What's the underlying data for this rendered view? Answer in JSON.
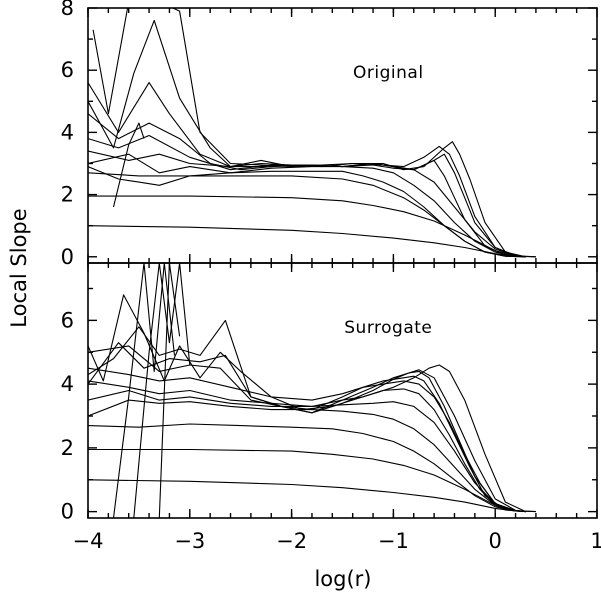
{
  "chart_data": [
    {
      "type": "line",
      "panel": "top",
      "annotation": "Original",
      "xlabel": "log(r)",
      "ylabel": "Local Slope",
      "xlim": [
        -4,
        1
      ],
      "ylim": [
        -0.2,
        8
      ],
      "x_ticks": [
        "-4",
        "-3",
        "-2",
        "-1",
        "0",
        "1"
      ],
      "y_ticks": [
        "0",
        "2",
        "4",
        "6",
        "8"
      ],
      "y_tick_values": [
        0,
        2,
        4,
        6,
        8
      ],
      "series": [
        {
          "x": [
            -4,
            -3.0,
            -2.0,
            -1.5,
            -1.0,
            -0.6,
            -0.3,
            0.0,
            0.2,
            0.4
          ],
          "y": [
            1.0,
            0.95,
            0.85,
            0.75,
            0.6,
            0.45,
            0.3,
            0.1,
            0.02,
            0.0
          ]
        },
        {
          "x": [
            -4,
            -3.0,
            -2.0,
            -1.5,
            -1.2,
            -0.9,
            -0.6,
            -0.3,
            0.0,
            0.2,
            0.4
          ],
          "y": [
            1.95,
            1.95,
            1.9,
            1.8,
            1.65,
            1.45,
            1.15,
            0.7,
            0.2,
            0.03,
            0.0
          ]
        },
        {
          "x": [
            -4,
            -3.5,
            -3.0,
            -2.5,
            -2.0,
            -1.5,
            -1.2,
            -0.9,
            -0.7,
            -0.5,
            -0.3,
            -0.1,
            0.1,
            0.3
          ],
          "y": [
            2.7,
            2.6,
            2.6,
            2.6,
            2.6,
            2.5,
            2.3,
            1.9,
            1.5,
            1.0,
            0.5,
            0.15,
            0.02,
            0.0
          ]
        },
        {
          "x": [
            -4,
            -3.7,
            -3.5,
            -3.3,
            -3.0,
            -2.6,
            -2.2,
            -1.8,
            -1.5,
            -1.3,
            -1.1,
            -0.9,
            -0.7,
            -0.5,
            -0.3,
            -0.1,
            0.1,
            0.3
          ],
          "y": [
            2.9,
            2.5,
            2.4,
            2.3,
            2.6,
            2.7,
            2.75,
            2.75,
            2.75,
            2.6,
            2.4,
            2.1,
            1.6,
            1.0,
            0.5,
            0.15,
            0.02,
            0.0
          ]
        },
        {
          "x": [
            -4,
            -3.6,
            -3.3,
            -3.0,
            -2.6,
            -2.2,
            -1.8,
            -1.5,
            -1.2,
            -1.0,
            -0.8,
            -0.6,
            -0.4,
            -0.2,
            0.0,
            0.2,
            0.3
          ],
          "y": [
            3.0,
            3.3,
            2.7,
            2.9,
            2.7,
            2.85,
            2.9,
            2.9,
            2.85,
            2.7,
            2.3,
            1.8,
            1.1,
            0.5,
            0.15,
            0.02,
            0.0
          ]
        },
        {
          "x": [
            -4,
            -3.6,
            -3.3,
            -3.0,
            -2.6,
            -2.2,
            -1.8,
            -1.5,
            -1.2,
            -1.0,
            -0.8,
            -0.6,
            -0.4,
            -0.2,
            0.0,
            0.2,
            0.3
          ],
          "y": [
            3.4,
            3.1,
            3.3,
            3.0,
            2.9,
            2.9,
            2.95,
            2.9,
            2.95,
            2.85,
            2.8,
            2.4,
            1.6,
            0.8,
            0.25,
            0.03,
            0.0
          ]
        },
        {
          "x": [
            -4,
            -3.7,
            -3.4,
            -3.0,
            -2.6,
            -2.2,
            -1.8,
            -1.5,
            -1.2,
            -1.0,
            -0.8,
            -0.6,
            -0.5,
            -0.4,
            -0.3,
            -0.1,
            0.1,
            0.3
          ],
          "y": [
            3.8,
            3.5,
            3.9,
            3.2,
            2.8,
            2.95,
            2.95,
            2.9,
            3.0,
            2.9,
            2.8,
            3.1,
            2.6,
            1.9,
            1.2,
            0.35,
            0.05,
            0.0
          ]
        },
        {
          "x": [
            -4,
            -3.7,
            -3.4,
            -3.1,
            -2.8,
            -2.5,
            -2.2,
            -1.9,
            -1.5,
            -1.2,
            -1.0,
            -0.8,
            -0.6,
            -0.5,
            -0.4,
            -0.3,
            -0.2,
            0.0,
            0.2,
            0.3
          ],
          "y": [
            4.6,
            3.8,
            4.3,
            3.8,
            3.0,
            2.8,
            2.9,
            2.95,
            2.9,
            3.0,
            2.9,
            2.8,
            3.1,
            3.3,
            2.7,
            1.9,
            1.1,
            0.3,
            0.04,
            0.0
          ]
        },
        {
          "x": [
            -4,
            -3.7,
            -3.4,
            -3.2,
            -2.9,
            -2.6,
            -2.3,
            -2.0,
            -1.7,
            -1.4,
            -1.1,
            -0.9,
            -0.7,
            -0.55,
            -0.45,
            -0.35,
            -0.2,
            0.0,
            0.2,
            0.3
          ],
          "y": [
            5.6,
            4.0,
            5.6,
            4.6,
            3.3,
            2.9,
            3.1,
            2.9,
            2.95,
            3.0,
            2.95,
            2.9,
            3.2,
            3.55,
            3.3,
            2.6,
            1.3,
            0.3,
            0.03,
            0.0
          ]
        },
        {
          "x": [
            -4,
            -3.75,
            -3.55,
            -3.35,
            -3.1,
            -2.8,
            -2.6,
            -2.3,
            -2.0,
            -1.7,
            -1.4,
            -1.1,
            -0.9,
            -0.7,
            -0.5,
            -0.42,
            -0.35,
            -0.25,
            -0.1,
            0.1,
            0.3
          ],
          "y": [
            5.0,
            3.5,
            5.9,
            7.6,
            5.1,
            3.5,
            2.9,
            3.0,
            2.95,
            2.9,
            3.0,
            3.0,
            2.8,
            2.9,
            3.5,
            3.7,
            3.3,
            2.5,
            1.1,
            0.15,
            0.0
          ]
        },
        {
          "x": [
            -3.95,
            -3.8,
            -3.6,
            -3.45,
            -3.3,
            -3.1,
            -2.9,
            -2.6,
            -2.3,
            -2.0
          ],
          "y": [
            7.3,
            4.6,
            8.2,
            8.2,
            8.2,
            7.9,
            4.0,
            3.0,
            2.95,
            2.9
          ]
        },
        {
          "x": [
            -3.75,
            -3.6,
            -3.5,
            -3.45
          ],
          "y": [
            1.6,
            3.6,
            4.3,
            3.8
          ]
        }
      ]
    },
    {
      "type": "line",
      "panel": "bottom",
      "annotation": "Surrogate",
      "xlabel": "log(r)",
      "ylabel": "Local Slope",
      "xlim": [
        -4,
        1
      ],
      "ylim": [
        -0.2,
        7.8
      ],
      "x_ticks": [
        "-4",
        "-3",
        "-2",
        "-1",
        "0",
        "1"
      ],
      "y_ticks": [
        "0",
        "2",
        "4",
        "6"
      ],
      "y_tick_values": [
        0,
        2,
        4,
        6
      ],
      "series": [
        {
          "x": [
            -4,
            -3.0,
            -2.0,
            -1.5,
            -1.0,
            -0.6,
            -0.3,
            0.0,
            0.2,
            0.4
          ],
          "y": [
            1.0,
            0.95,
            0.85,
            0.75,
            0.6,
            0.45,
            0.3,
            0.1,
            0.02,
            0.0
          ]
        },
        {
          "x": [
            -4,
            -3.0,
            -2.0,
            -1.6,
            -1.2,
            -0.9,
            -0.6,
            -0.3,
            0.0,
            0.2,
            0.4
          ],
          "y": [
            1.95,
            1.95,
            1.9,
            1.8,
            1.65,
            1.45,
            1.15,
            0.7,
            0.2,
            0.03,
            0.0
          ]
        },
        {
          "x": [
            -4,
            -3.5,
            -3.0,
            -2.5,
            -2.0,
            -1.6,
            -1.3,
            -1.0,
            -0.8,
            -0.6,
            -0.4,
            -0.2,
            0.0,
            0.2,
            0.3
          ],
          "y": [
            2.7,
            2.65,
            2.75,
            2.7,
            2.65,
            2.6,
            2.45,
            2.2,
            1.9,
            1.5,
            1.0,
            0.5,
            0.15,
            0.02,
            0.0
          ]
        },
        {
          "x": [
            -4,
            -3.6,
            -3.3,
            -3.0,
            -2.6,
            -2.2,
            -1.8,
            -1.5,
            -1.2,
            -1.0,
            -0.8,
            -0.6,
            -0.4,
            -0.2,
            0.0,
            0.2,
            0.3
          ],
          "y": [
            3.0,
            3.5,
            3.4,
            3.45,
            3.3,
            3.2,
            3.2,
            3.15,
            3.05,
            2.9,
            2.6,
            2.1,
            1.4,
            0.7,
            0.2,
            0.03,
            0.0
          ]
        },
        {
          "x": [
            -4,
            -3.6,
            -3.3,
            -3.0,
            -2.6,
            -2.2,
            -1.8,
            -1.5,
            -1.2,
            -1.0,
            -0.8,
            -0.6,
            -0.4,
            -0.2,
            0.0,
            0.2,
            0.3
          ],
          "y": [
            3.5,
            3.8,
            3.5,
            3.6,
            3.4,
            3.3,
            3.3,
            3.35,
            3.4,
            3.45,
            3.3,
            2.8,
            1.9,
            0.9,
            0.25,
            0.03,
            0.0
          ]
        },
        {
          "x": [
            -4,
            -3.6,
            -3.3,
            -3.0,
            -2.6,
            -2.2,
            -1.8,
            -1.5,
            -1.3,
            -1.1,
            -0.9,
            -0.75,
            -0.6,
            -0.45,
            -0.3,
            -0.15,
            0.0,
            0.2,
            0.3
          ],
          "y": [
            4.1,
            3.9,
            3.7,
            3.8,
            3.5,
            3.4,
            3.3,
            3.5,
            3.6,
            3.8,
            3.85,
            3.7,
            3.2,
            2.4,
            1.5,
            0.7,
            0.2,
            0.02,
            0.0
          ]
        },
        {
          "x": [
            -4,
            -3.6,
            -3.3,
            -3.0,
            -2.6,
            -2.2,
            -1.8,
            -1.5,
            -1.3,
            -1.1,
            -0.9,
            -0.75,
            -0.6,
            -0.45,
            -0.3,
            -0.15,
            0.0,
            0.2,
            0.3
          ],
          "y": [
            4.5,
            4.3,
            4.1,
            4.2,
            3.9,
            3.6,
            3.5,
            3.7,
            3.9,
            4.0,
            4.1,
            4.0,
            3.6,
            2.8,
            1.8,
            0.9,
            0.25,
            0.03,
            0.0
          ]
        },
        {
          "x": [
            -4,
            -3.6,
            -3.3,
            -3.0,
            -2.7,
            -2.4,
            -2.1,
            -1.8,
            -1.5,
            -1.3,
            -1.1,
            -0.9,
            -0.8,
            -0.7,
            -0.55,
            -0.4,
            -0.25,
            -0.1,
            0.1,
            0.3
          ],
          "y": [
            5.0,
            5.2,
            4.4,
            4.6,
            4.5,
            3.5,
            3.3,
            3.2,
            3.6,
            3.9,
            4.1,
            4.2,
            4.25,
            4.1,
            3.4,
            2.4,
            1.4,
            0.5,
            0.05,
            0.0
          ]
        },
        {
          "x": [
            -4,
            -3.7,
            -3.45,
            -3.2,
            -2.9,
            -2.65,
            -2.4,
            -2.1,
            -1.8,
            -1.5,
            -1.2,
            -1.0,
            -0.85,
            -0.75,
            -0.65,
            -0.5,
            -0.35,
            -0.2,
            0.0,
            0.2,
            0.3
          ],
          "y": [
            4.0,
            5.3,
            4.5,
            4.8,
            4.7,
            4.9,
            3.6,
            3.3,
            3.1,
            3.5,
            3.9,
            4.2,
            4.35,
            4.4,
            4.2,
            3.3,
            2.2,
            1.1,
            0.25,
            0.03,
            0.0
          ]
        },
        {
          "x": [
            -4,
            -3.75,
            -3.5,
            -3.3,
            -3.1,
            -2.9,
            -2.65,
            -2.4,
            -2.1,
            -1.8,
            -1.5,
            -1.2,
            -1.0,
            -0.85,
            -0.75,
            -0.6,
            -0.4,
            -0.2,
            0.0,
            0.2,
            0.3
          ],
          "y": [
            4.3,
            4.8,
            5.8,
            4.9,
            5.1,
            4.9,
            6.0,
            3.6,
            3.3,
            3.1,
            3.4,
            3.8,
            4.15,
            4.35,
            4.45,
            4.2,
            3.0,
            1.6,
            0.4,
            0.04,
            0.0
          ]
        },
        {
          "x": [
            -4,
            -3.85,
            -3.65,
            -3.45,
            -3.25,
            -3.1,
            -2.9,
            -2.7,
            -2.5,
            -2.2,
            -1.9,
            -1.6,
            -1.3,
            -1.0,
            -0.8,
            -0.65,
            -0.55,
            -0.45,
            -0.3,
            -0.1,
            0.1,
            0.3
          ],
          "y": [
            5.2,
            4.1,
            6.8,
            5.6,
            4.1,
            5.2,
            4.2,
            5.0,
            4.4,
            3.6,
            3.2,
            3.3,
            3.6,
            3.9,
            4.2,
            4.5,
            4.6,
            4.4,
            3.5,
            1.8,
            0.3,
            0.0
          ]
        },
        {
          "x": [
            -3.75,
            -3.6,
            -3.45,
            -3.35,
            -3.25,
            -3.15
          ],
          "y": [
            -0.2,
            3.6,
            7.8,
            4.4,
            7.8,
            4.9
          ]
        },
        {
          "x": [
            -3.55,
            -3.4,
            -3.3,
            -3.2,
            -3.1,
            -3.0
          ],
          "y": [
            -0.2,
            5.0,
            7.8,
            5.3,
            7.8,
            4.6
          ]
        },
        {
          "x": [
            -3.3,
            -3.2,
            -3.1
          ],
          "y": [
            -0.2,
            7.8,
            5.5
          ]
        }
      ]
    }
  ]
}
